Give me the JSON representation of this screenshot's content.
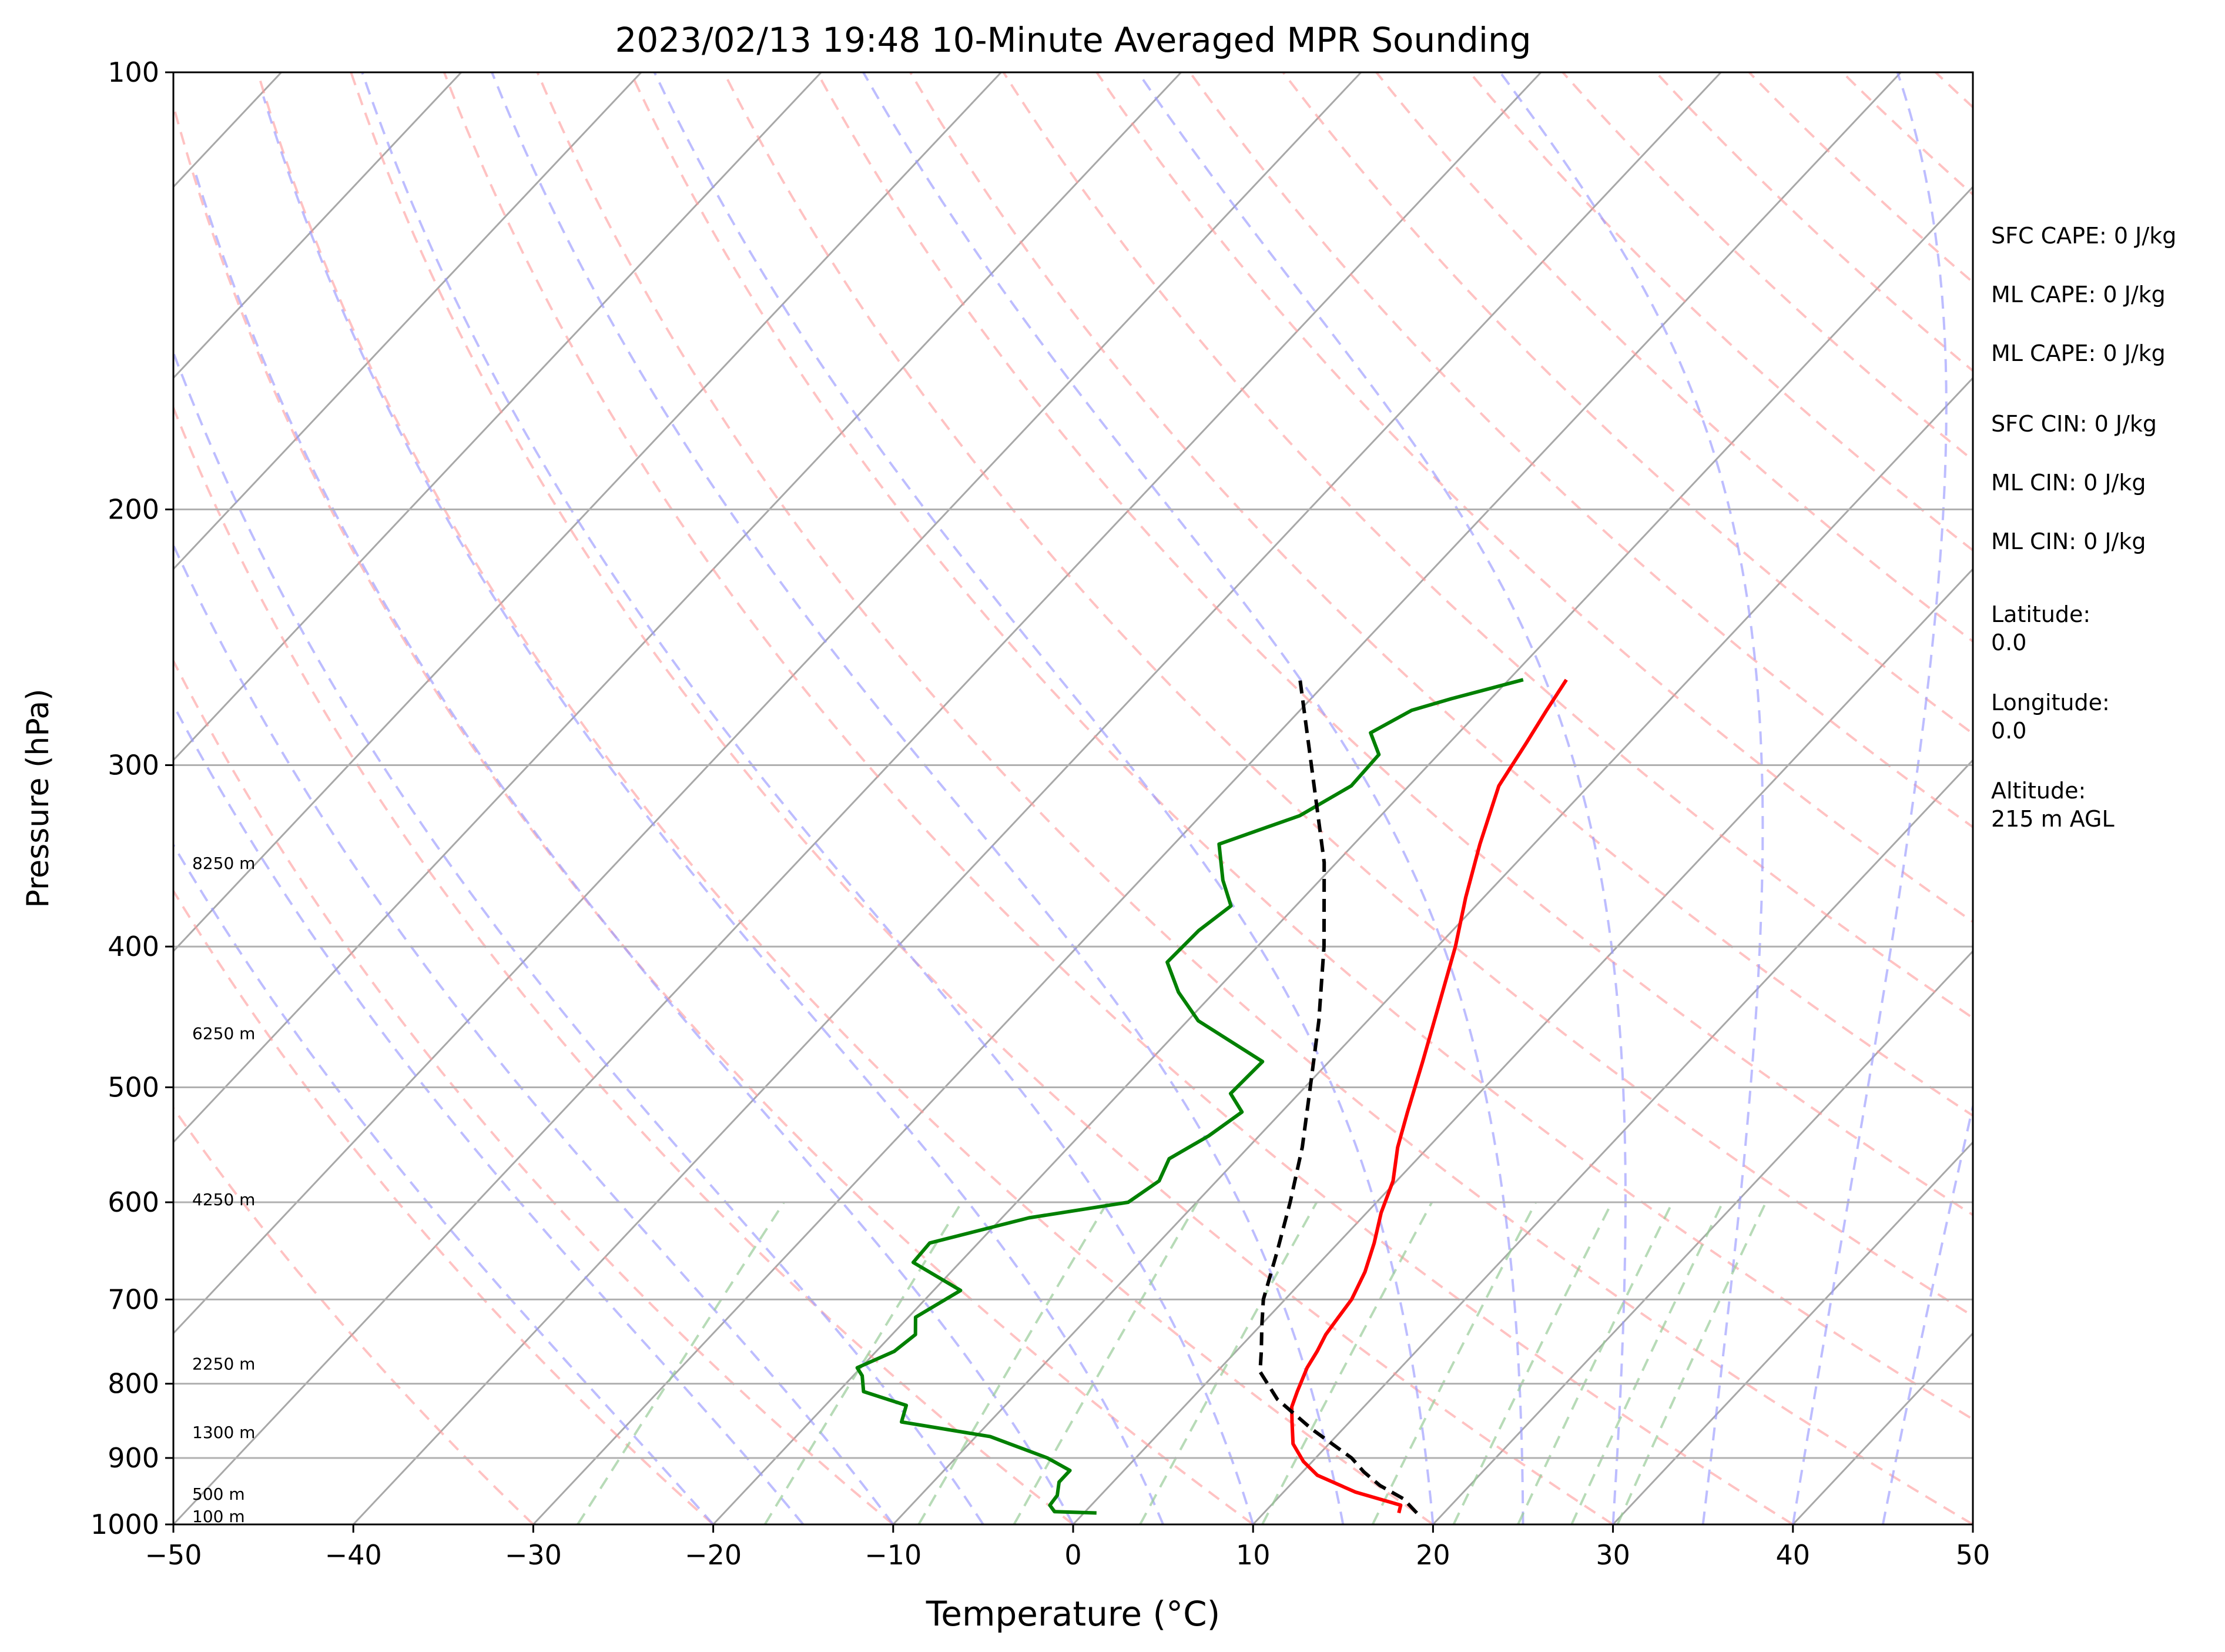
{
  "chart_data": {
    "type": "line",
    "title": "2023/02/13 19:48 10-Minute Averaged MPR Sounding",
    "xlabel": "Temperature (°C)",
    "ylabel": "Pressure (hPa)",
    "xlim": [
      -50,
      50
    ],
    "ylim": [
      1000,
      100
    ],
    "y_scale": "log",
    "skew_t": true,
    "x_ticks": [
      -50,
      -40,
      -30,
      -20,
      -10,
      0,
      10,
      20,
      30,
      40,
      50
    ],
    "x_tick_labels": [
      "−50",
      "−40",
      "−30",
      "−20",
      "−10",
      "0",
      "10",
      "20",
      "30",
      "40",
      "50"
    ],
    "y_ticks": [
      1000,
      900,
      800,
      700,
      600,
      500,
      400,
      300,
      200,
      100
    ],
    "y_tick_labels": [
      "1000",
      "900",
      "800",
      "700",
      "600",
      "500",
      "400",
      "300",
      "200",
      "100"
    ],
    "grid_pressures": [
      900,
      800,
      700,
      600,
      500,
      400,
      300,
      200
    ],
    "series": [
      {
        "kind": "temperature",
        "color": "#ff0000",
        "points": [
          [
            982,
            17.5
          ],
          [
            970,
            17.2
          ],
          [
            950,
            14.0
          ],
          [
            925,
            11.0
          ],
          [
            905,
            9.5
          ],
          [
            880,
            8.0
          ],
          [
            850,
            6.8
          ],
          [
            830,
            6.0
          ],
          [
            810,
            5.5
          ],
          [
            780,
            4.8
          ],
          [
            760,
            4.5
          ],
          [
            740,
            4.1
          ],
          [
            720,
            3.9
          ],
          [
            700,
            3.7
          ],
          [
            670,
            3.0
          ],
          [
            640,
            2.0
          ],
          [
            610,
            0.8
          ],
          [
            580,
            -0.2
          ],
          [
            550,
            -1.7
          ],
          [
            520,
            -3.0
          ],
          [
            480,
            -4.8
          ],
          [
            440,
            -6.8
          ],
          [
            400,
            -9.0
          ],
          [
            370,
            -11.0
          ],
          [
            340,
            -13.0
          ],
          [
            310,
            -15.0
          ],
          [
            290,
            -15.7
          ],
          [
            275,
            -16.3
          ],
          [
            262,
            -16.8
          ]
        ]
      },
      {
        "kind": "dewpoint",
        "color": "#008000",
        "points": [
          [
            982,
            0.7
          ],
          [
            980,
            -1.7
          ],
          [
            970,
            -2.3
          ],
          [
            955,
            -2.4
          ],
          [
            935,
            -3.0
          ],
          [
            918,
            -3.0
          ],
          [
            900,
            -4.9
          ],
          [
            870,
            -9.2
          ],
          [
            850,
            -14.9
          ],
          [
            828,
            -15.5
          ],
          [
            810,
            -18.6
          ],
          [
            790,
            -19.5
          ],
          [
            780,
            -20.2
          ],
          [
            760,
            -19.0
          ],
          [
            740,
            -18.7
          ],
          [
            720,
            -19.6
          ],
          [
            690,
            -18.5
          ],
          [
            660,
            -22.6
          ],
          [
            640,
            -22.7
          ],
          [
            615,
            -18.5
          ],
          [
            600,
            -13.8
          ],
          [
            580,
            -13.2
          ],
          [
            560,
            -13.8
          ],
          [
            540,
            -12.8
          ],
          [
            520,
            -12.2
          ],
          [
            505,
            -13.8
          ],
          [
            480,
            -13.7
          ],
          [
            450,
            -19.4
          ],
          [
            430,
            -22.0
          ],
          [
            410,
            -24.2
          ],
          [
            390,
            -24.1
          ],
          [
            375,
            -23.6
          ],
          [
            360,
            -25.4
          ],
          [
            340,
            -27.5
          ],
          [
            325,
            -24.5
          ],
          [
            310,
            -23.2
          ],
          [
            295,
            -23.3
          ],
          [
            285,
            -24.9
          ],
          [
            275,
            -23.8
          ],
          [
            270,
            -22.2
          ],
          [
            262,
            -19.2
          ]
        ]
      },
      {
        "kind": "parcel",
        "color": "#000000",
        "dashed": true,
        "points": [
          [
            982,
            18.5
          ],
          [
            960,
            17.0
          ],
          [
            940,
            15.0
          ],
          [
            920,
            13.4
          ],
          [
            900,
            12.0
          ],
          [
            860,
            8.3
          ],
          [
            820,
            4.8
          ],
          [
            785,
            2.4
          ],
          [
            760,
            1.4
          ],
          [
            730,
            0.1
          ],
          [
            700,
            -1.2
          ],
          [
            650,
            -2.9
          ],
          [
            600,
            -4.8
          ],
          [
            550,
            -7.0
          ],
          [
            500,
            -9.7
          ],
          [
            450,
            -12.7
          ],
          [
            400,
            -16.3
          ],
          [
            350,
            -20.7
          ],
          [
            300,
            -26.5
          ],
          [
            262,
            -31.6
          ]
        ]
      }
    ],
    "background_lines": {
      "dry_adiabats_color": "#ff9999",
      "moist_adiabats_color": "#9999ff",
      "mixing_ratio_color": "#99cc99",
      "isotherms_color": "#999999"
    },
    "height_labels": [
      "8250 m",
      "6250 m",
      "4250 m",
      "2250 m",
      "1300 m",
      "500 m",
      "100 m"
    ],
    "height_label_pressures": [
      355,
      465,
      605,
      785,
      875,
      965,
      1000
    ]
  },
  "side_panel": {
    "sfc_cape": "SFC CAPE: 0 J/kg",
    "ml_cape_1": "ML CAPE: 0 J/kg",
    "ml_cape_2": "ML CAPE: 0 J/kg",
    "sfc_cin": "SFC CIN: 0 J/kg",
    "ml_cin_1": "ML CIN: 0 J/kg",
    "ml_cin_2": "ML CIN: 0 J/kg",
    "latitude_label": "Latitude:",
    "latitude_value": "0.0",
    "longitude_label": "Longitude:",
    "longitude_value": "0.0",
    "altitude_label": "Altitude:",
    "altitude_value": "215 m AGL"
  }
}
